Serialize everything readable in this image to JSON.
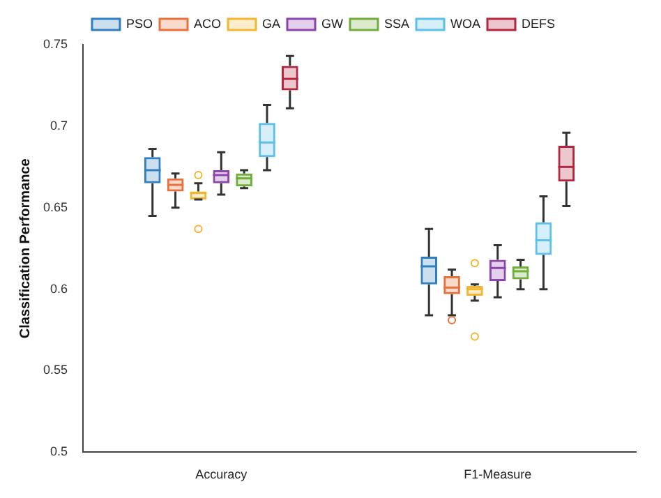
{
  "chart_data": {
    "type": "box",
    "ylabel": "Classification Performance",
    "categories": [
      "Accuracy",
      "F1-Measure"
    ],
    "ylim": [
      0.5,
      0.75
    ],
    "yticks": [
      0.5,
      0.55,
      0.6,
      0.65,
      0.7,
      0.75
    ],
    "legend": "top",
    "grid": false,
    "series": [
      {
        "name": "PSO",
        "color": "#2f7fc1",
        "boxes": [
          {
            "low": 0.645,
            "q1": 0.665,
            "median": 0.673,
            "q3": 0.681,
            "high": 0.686
          },
          {
            "low": 0.584,
            "q1": 0.603,
            "median": 0.614,
            "q3": 0.62,
            "high": 0.637
          }
        ]
      },
      {
        "name": "ACO",
        "color": "#e8703a",
        "boxes": [
          {
            "low": 0.65,
            "q1": 0.66,
            "median": 0.664,
            "q3": 0.668,
            "high": 0.671
          },
          {
            "low": 0.584,
            "q1": 0.597,
            "median": 0.601,
            "q3": 0.608,
            "high": 0.612,
            "outliers": [
              0.581
            ]
          }
        ]
      },
      {
        "name": "GA",
        "color": "#f2b632",
        "boxes": [
          {
            "low": 0.655,
            "q1": 0.655,
            "median": 0.659,
            "q3": 0.66,
            "high": 0.665,
            "outliers": [
              0.67,
              0.637
            ]
          },
          {
            "low": 0.593,
            "q1": 0.596,
            "median": 0.6,
            "q3": 0.602,
            "high": 0.603,
            "outliers": [
              0.616,
              0.571
            ]
          }
        ]
      },
      {
        "name": "GW",
        "color": "#8e44ad",
        "boxes": [
          {
            "low": 0.658,
            "q1": 0.665,
            "median": 0.67,
            "q3": 0.673,
            "high": 0.684
          },
          {
            "low": 0.595,
            "q1": 0.605,
            "median": 0.613,
            "q3": 0.618,
            "high": 0.627
          }
        ]
      },
      {
        "name": "SSA",
        "color": "#72ad3c",
        "boxes": [
          {
            "low": 0.662,
            "q1": 0.663,
            "median": 0.668,
            "q3": 0.671,
            "high": 0.673
          },
          {
            "low": 0.6,
            "q1": 0.606,
            "median": 0.611,
            "q3": 0.614,
            "high": 0.618
          }
        ]
      },
      {
        "name": "WOA",
        "color": "#5bc0eb",
        "boxes": [
          {
            "low": 0.673,
            "q1": 0.681,
            "median": 0.69,
            "q3": 0.702,
            "high": 0.713
          },
          {
            "low": 0.6,
            "q1": 0.621,
            "median": 0.63,
            "q3": 0.641,
            "high": 0.657
          }
        ]
      },
      {
        "name": "DEFS",
        "color": "#b5253d",
        "boxes": [
          {
            "low": 0.711,
            "q1": 0.722,
            "median": 0.729,
            "q3": 0.737,
            "high": 0.743
          },
          {
            "low": 0.651,
            "q1": 0.666,
            "median": 0.675,
            "q3": 0.688,
            "high": 0.696
          }
        ]
      }
    ]
  }
}
